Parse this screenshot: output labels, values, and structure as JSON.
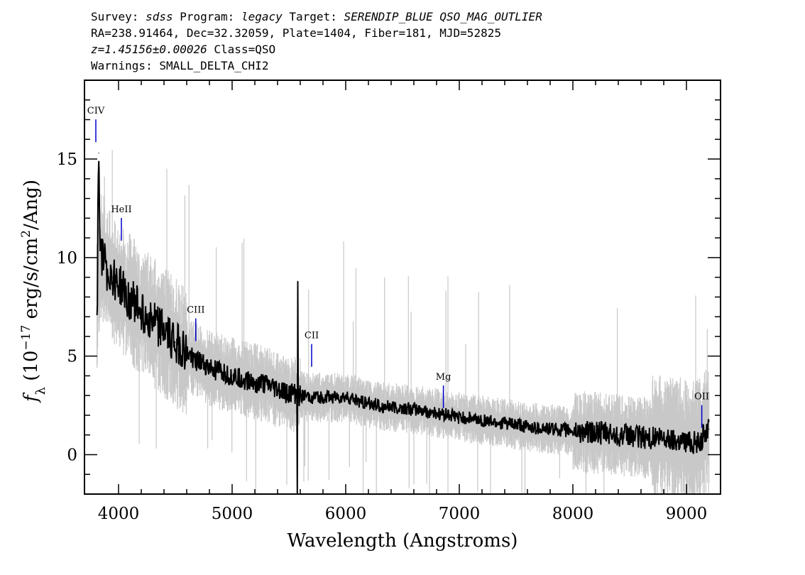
{
  "header": {
    "survey_label": "Survey:",
    "survey": "sdss",
    "program_label": "Program:",
    "program": "legacy",
    "target_label": "Target:",
    "target": "SERENDIP_BLUE QSO_MAG_OUTLIER",
    "coords": "RA=238.91464, Dec=32.32059, Plate=1404, Fiber=181, MJD=52825",
    "redshift": "z=1.45156±0.00026",
    "class_text": "Class=QSO",
    "warnings": "Warnings: SMALL_DELTA_CHI2"
  },
  "chart_data": {
    "type": "line",
    "xlabel": "Wavelength (Angstroms)",
    "ylabel_pre": "f",
    "ylabel_sub": "λ",
    "ylabel_mid": " (10",
    "ylabel_exp": "−17",
    "ylabel_post": " erg/s/cm",
    "ylabel_exp2": "2",
    "ylabel_end": "/Ang)",
    "xlim": [
      3700,
      9300
    ],
    "ylim": [
      -2,
      19
    ],
    "x_ticks": [
      4000,
      5000,
      6000,
      7000,
      8000,
      9000
    ],
    "y_ticks": [
      0,
      5,
      10,
      15
    ],
    "colors": {
      "flux": "#000000",
      "noise": "#c8c8c8",
      "lines": "#0000cc"
    },
    "series": [
      {
        "x": [
          3810,
          3825,
          3850,
          3900,
          3950,
          4000,
          4100,
          4200,
          4300,
          4400,
          4500,
          4600,
          4700,
          4800,
          4900,
          5000,
          5200,
          5400,
          5500,
          5577,
          5600,
          5700,
          5800,
          6000,
          6200,
          6400,
          6600,
          6800,
          7000,
          7200,
          7400,
          7600,
          7800,
          8000,
          8200,
          8400,
          8600,
          8800,
          9000,
          9100,
          9200
        ],
        "values": [
          7.5,
          15.3,
          10.2,
          9.3,
          9.0,
          8.6,
          7.9,
          7.3,
          6.8,
          6.2,
          5.7,
          5.1,
          4.7,
          4.4,
          4.2,
          4.0,
          3.7,
          3.3,
          3.1,
          8.8,
          3.0,
          2.9,
          2.9,
          2.9,
          2.6,
          2.4,
          2.3,
          2.1,
          1.9,
          1.75,
          1.6,
          1.4,
          1.3,
          1.2,
          1.1,
          1.0,
          0.9,
          0.8,
          0.7,
          0.6,
          1.3
        ]
      }
    ],
    "lines": [
      {
        "label": "CIV",
        "x": 3800,
        "y": 17.3
      },
      {
        "label": "HeII",
        "x": 4025,
        "y": 12.3
      },
      {
        "label": "CIII",
        "x": 4680,
        "y": 7.2
      },
      {
        "label": "CII",
        "x": 5700,
        "y": 5.9
      },
      {
        "label": "Mg",
        "x": 6860,
        "y": 3.8
      },
      {
        "label": "OII",
        "x": 9135,
        "y": 2.8
      }
    ]
  }
}
